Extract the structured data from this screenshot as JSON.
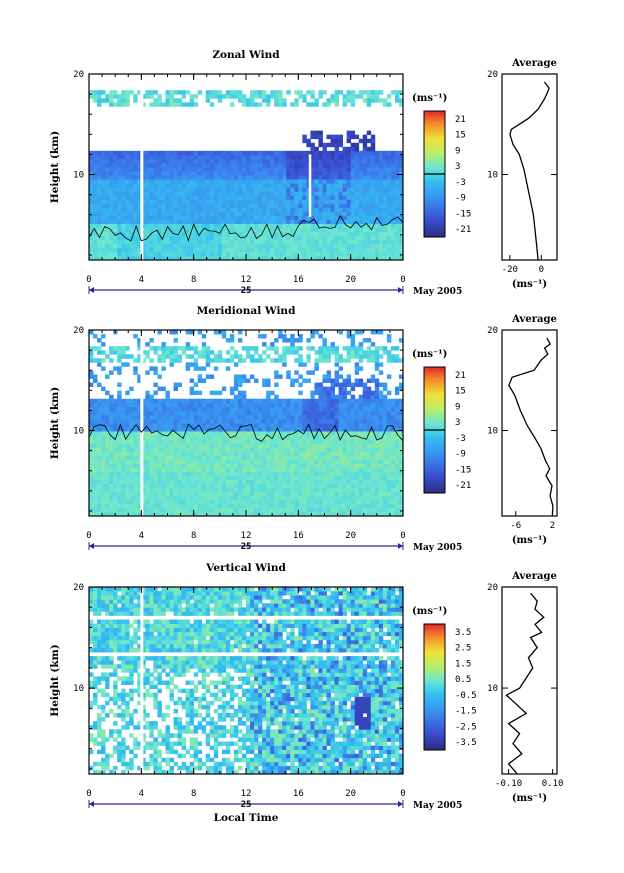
{
  "chart_data": [
    {
      "type": "heatmap",
      "title": "Zonal Wind",
      "ylabel": "Height (km)",
      "xlabel": "",
      "xlim": [
        0,
        24
      ],
      "ylim": [
        1.5,
        20
      ],
      "xticks": [
        "0",
        "4",
        "8",
        "12",
        "16",
        "20",
        "0"
      ],
      "yticks": [
        "10",
        "20"
      ],
      "day_label": "25",
      "date_label": "May 2005",
      "colorbar": {
        "unit": "(ms⁻¹)",
        "ticks": [
          "21",
          "15",
          "9",
          "3",
          "-3",
          "-9",
          "-15",
          "-21"
        ],
        "range": [
          -24,
          24
        ]
      },
      "profile": {
        "title": "Average",
        "xlabel": "(ms⁻¹)",
        "xticks": [
          "-20",
          "0"
        ],
        "xlim": [
          -25,
          10
        ],
        "yticks": [
          "10",
          "20"
        ],
        "points": [
          [
            -2,
            1.5
          ],
          [
            -3,
            3
          ],
          [
            -4,
            4.5
          ],
          [
            -5,
            6
          ],
          [
            -7,
            7.5
          ],
          [
            -9,
            9
          ],
          [
            -11,
            10.5
          ],
          [
            -14,
            12
          ],
          [
            -18,
            13
          ],
          [
            -20,
            14
          ],
          [
            -19,
            14.5
          ],
          [
            -14,
            15
          ],
          [
            -8,
            15.6
          ],
          [
            -2,
            16.5
          ],
          [
            2,
            17.5
          ],
          [
            4,
            18.2
          ],
          [
            5,
            18.6
          ],
          [
            3,
            19
          ],
          [
            2,
            19.2
          ]
        ]
      }
    },
    {
      "type": "heatmap",
      "title": "Meridional Wind",
      "ylabel": "Height (km)",
      "xlabel": "",
      "xlim": [
        0,
        24
      ],
      "ylim": [
        1.5,
        20
      ],
      "xticks": [
        "0",
        "4",
        "8",
        "12",
        "16",
        "20",
        "0"
      ],
      "yticks": [
        "10",
        "20"
      ],
      "day_label": "25",
      "date_label": "May 2005",
      "colorbar": {
        "unit": "(ms⁻¹)",
        "ticks": [
          "21",
          "15",
          "9",
          "3",
          "-3",
          "-9",
          "-15",
          "-21"
        ],
        "range": [
          -24,
          24
        ]
      },
      "profile": {
        "title": "Average",
        "xlabel": "(ms⁻¹)",
        "xticks": [
          "-6",
          "2"
        ],
        "xlim": [
          -9,
          3
        ],
        "yticks": [
          "10",
          "20"
        ],
        "points": [
          [
            2,
            1.5
          ],
          [
            2.1,
            2.5
          ],
          [
            1.5,
            3.5
          ],
          [
            1.9,
            4.5
          ],
          [
            0.6,
            5.5
          ],
          [
            1.4,
            6.2
          ],
          [
            0.5,
            7
          ],
          [
            -0.5,
            8.2
          ],
          [
            -2,
            9.4
          ],
          [
            -3.5,
            10.5
          ],
          [
            -5,
            12
          ],
          [
            -6.2,
            13.5
          ],
          [
            -7.5,
            14.5
          ],
          [
            -6.8,
            15.3
          ],
          [
            -2,
            16
          ],
          [
            -0.5,
            17
          ],
          [
            1,
            17.6
          ],
          [
            0.3,
            18.2
          ],
          [
            1.5,
            18.6
          ],
          [
            0.8,
            19.2
          ]
        ]
      }
    },
    {
      "type": "heatmap",
      "title": "Vertical Wind",
      "ylabel": "Height (km)",
      "xlabel": "Local Time",
      "xlim": [
        0,
        24
      ],
      "ylim": [
        1.5,
        20
      ],
      "xticks": [
        "0",
        "4",
        "8",
        "12",
        "16",
        "20",
        "0"
      ],
      "yticks": [
        "10",
        "20"
      ],
      "day_label": "25",
      "date_label": "May 2005",
      "colorbar": {
        "unit": "(ms⁻¹)",
        "ticks": [
          "3.5",
          "2.5",
          "1.5",
          "0.5",
          "-0.5",
          "-1.5",
          "-2.5",
          "-3.5"
        ],
        "range": [
          -4,
          4
        ]
      },
      "profile": {
        "title": "Average",
        "xlabel": "(ms⁻¹)",
        "xticks": [
          "-0.10",
          "0.10"
        ],
        "xlim": [
          -0.13,
          0.12
        ],
        "yticks": [
          "10",
          "20"
        ],
        "points": [
          [
            -0.06,
            1.5
          ],
          [
            -0.1,
            2.5
          ],
          [
            -0.04,
            3.5
          ],
          [
            -0.08,
            4.5
          ],
          [
            -0.05,
            5.5
          ],
          [
            -0.1,
            6.5
          ],
          [
            -0.02,
            7.5
          ],
          [
            -0.07,
            8.5
          ],
          [
            -0.11,
            9.3
          ],
          [
            -0.05,
            10
          ],
          [
            -0.02,
            11
          ],
          [
            0.01,
            12
          ],
          [
            -0.01,
            13
          ],
          [
            0.03,
            14
          ],
          [
            0,
            15
          ],
          [
            0.05,
            15.5
          ],
          [
            0.02,
            16.3
          ],
          [
            0.06,
            17
          ],
          [
            0.02,
            17.8
          ],
          [
            0.03,
            18.6
          ],
          [
            0.0,
            19.4
          ]
        ]
      }
    }
  ]
}
